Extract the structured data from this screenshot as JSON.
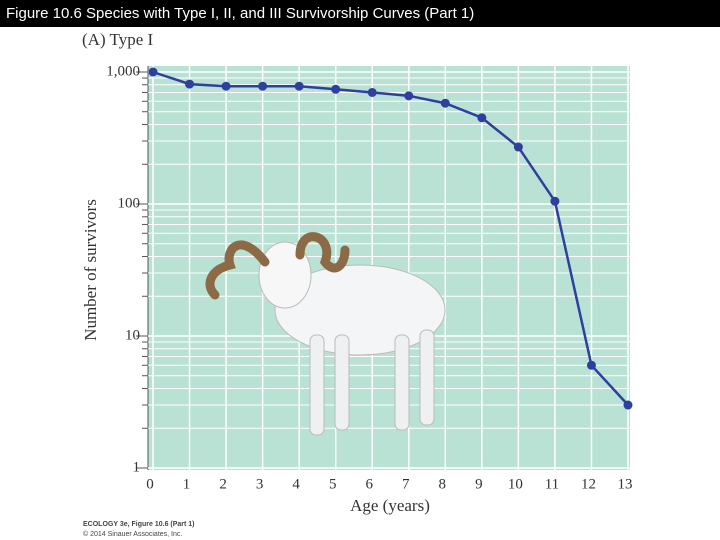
{
  "header": {
    "title": "Figure 10.6  Species with Type I, II, and III Survivorship Curves (Part 1)"
  },
  "chart_data": {
    "type": "line",
    "title": "(A) Type I",
    "x_label": "Age (years)",
    "y_label": "Number of survivors",
    "x": [
      0,
      1,
      2,
      3,
      4,
      5,
      6,
      7,
      8,
      9,
      10,
      11,
      12,
      13
    ],
    "series": [
      {
        "name": "Type I",
        "color": "#2e3f9e",
        "values": [
          1000,
          810,
          780,
          780,
          780,
          740,
          700,
          660,
          580,
          450,
          270,
          105,
          6,
          3
        ]
      }
    ],
    "xlim": [
      0,
      13
    ],
    "xticks": [
      0,
      1,
      2,
      3,
      4,
      5,
      6,
      7,
      8,
      9,
      10,
      11,
      12,
      13
    ],
    "ylim": [
      1,
      1000
    ],
    "yticks": [
      1,
      10,
      100,
      {
        "value": 1000,
        "label": "1,000"
      }
    ],
    "y_scale": "log",
    "grid": true,
    "background": "#b9e1d4"
  },
  "footer": {
    "source": "ECOLOGY 3e, Figure 10.6 (Part 1)",
    "copyright": "© 2014 Sinauer Associates, Inc."
  }
}
